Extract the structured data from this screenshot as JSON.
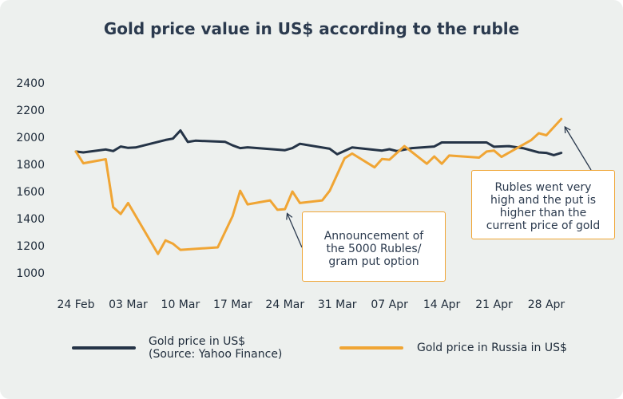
{
  "chart_data": {
    "type": "line",
    "title": "Gold price value in US$ according to the ruble",
    "xlabel": "",
    "ylabel": "",
    "ylim": [
      1000,
      2400
    ],
    "yticks": [
      1000,
      1200,
      1400,
      1600,
      1800,
      2000,
      2200,
      2400
    ],
    "xlim": [
      0,
      66
    ],
    "xticks": [
      {
        "label": "24 Feb",
        "x": 0
      },
      {
        "label": "03 Mar",
        "x": 7
      },
      {
        "label": "10 Mar",
        "x": 14
      },
      {
        "label": "17 Mar",
        "x": 21
      },
      {
        "label": "24 Mar",
        "x": 28
      },
      {
        "label": "31 Mar",
        "x": 35
      },
      {
        "label": "07 Apr",
        "x": 42
      },
      {
        "label": "14 Apr",
        "x": 49
      },
      {
        "label": "21 Apr",
        "x": 56
      },
      {
        "label": "28 Apr",
        "x": 63
      }
    ],
    "grid": false,
    "legend_position": "bottom",
    "series": [
      {
        "name": "Gold price in US$ (Source: Yahoo Finance)",
        "name_lines": [
          "Gold price in US$",
          "(Source: Yahoo Finance)"
        ],
        "color": "#253447",
        "points": [
          [
            0,
            1895
          ],
          [
            1,
            1888
          ],
          [
            4,
            1910
          ],
          [
            5,
            1898
          ],
          [
            6,
            1932
          ],
          [
            7,
            1922
          ],
          [
            8,
            1925
          ],
          [
            12,
            1980
          ],
          [
            13,
            1990
          ],
          [
            14,
            2050
          ],
          [
            15,
            1965
          ],
          [
            16,
            1975
          ],
          [
            20,
            1966
          ],
          [
            21,
            1940
          ],
          [
            22,
            1920
          ],
          [
            23,
            1926
          ],
          [
            28,
            1905
          ],
          [
            29,
            1920
          ],
          [
            30,
            1952
          ],
          [
            34,
            1915
          ],
          [
            35,
            1875
          ],
          [
            37,
            1925
          ],
          [
            41,
            1902
          ],
          [
            42,
            1912
          ],
          [
            43,
            1898
          ],
          [
            45,
            1920
          ],
          [
            48,
            1932
          ],
          [
            49,
            1962
          ],
          [
            55,
            1962
          ],
          [
            56,
            1930
          ],
          [
            58,
            1935
          ],
          [
            60,
            1918
          ],
          [
            62,
            1888
          ],
          [
            63,
            1885
          ],
          [
            64,
            1868
          ],
          [
            65,
            1885
          ]
        ]
      },
      {
        "name": "Gold price in Russia in US$",
        "name_lines": [
          "Gold price in Russia in US$"
        ],
        "color": "#f0a534",
        "points": [
          [
            0,
            1895
          ],
          [
            1,
            1808
          ],
          [
            4,
            1838
          ],
          [
            5,
            1485
          ],
          [
            6,
            1435
          ],
          [
            7,
            1515
          ],
          [
            11,
            1140
          ],
          [
            12,
            1240
          ],
          [
            13,
            1215
          ],
          [
            14,
            1170
          ],
          [
            19,
            1188
          ],
          [
            21,
            1420
          ],
          [
            22,
            1605
          ],
          [
            23,
            1505
          ],
          [
            26,
            1535
          ],
          [
            27,
            1465
          ],
          [
            28,
            1470
          ],
          [
            29,
            1600
          ],
          [
            30,
            1515
          ],
          [
            33,
            1535
          ],
          [
            34,
            1605
          ],
          [
            36,
            1845
          ],
          [
            37,
            1880
          ],
          [
            40,
            1778
          ],
          [
            41,
            1840
          ],
          [
            42,
            1835
          ],
          [
            44,
            1935
          ],
          [
            47,
            1805
          ],
          [
            48,
            1858
          ],
          [
            49,
            1805
          ],
          [
            50,
            1865
          ],
          [
            54,
            1850
          ],
          [
            55,
            1895
          ],
          [
            56,
            1902
          ],
          [
            57,
            1855
          ],
          [
            61,
            1980
          ],
          [
            62,
            2030
          ],
          [
            63,
            2015
          ],
          [
            65,
            2135
          ]
        ]
      }
    ],
    "annotations": [
      {
        "text_lines": [
          "Announcement of",
          "the 5000 Rubles/",
          "gram put option"
        ],
        "point": [
          28.3,
          1462
        ]
      },
      {
        "text_lines": [
          "Rubles went very",
          "high and the put is",
          "higher than the",
          "current price of gold"
        ],
        "point": [
          65.5,
          2100
        ]
      }
    ]
  }
}
